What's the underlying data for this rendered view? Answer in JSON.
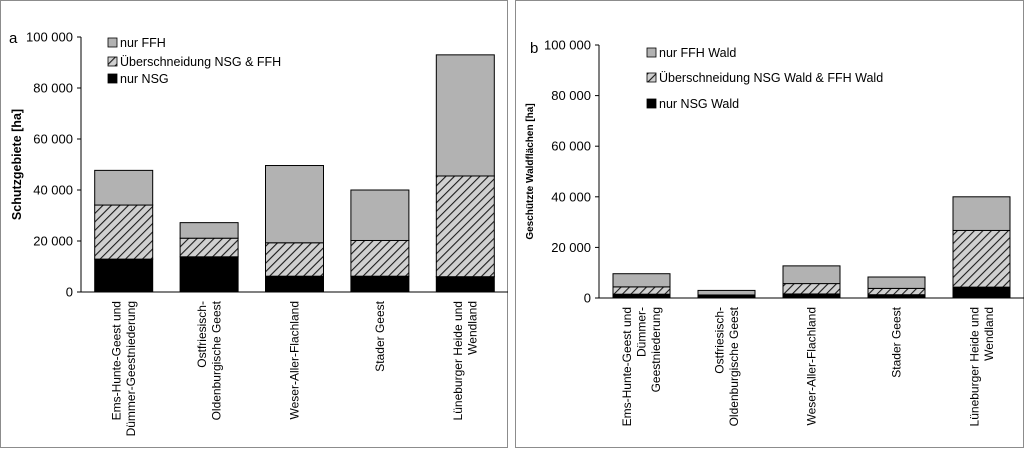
{
  "chart_data": [
    {
      "panel": "a",
      "type": "bar",
      "stacked": true,
      "ylabel": "Schutzgebiete  [ha]",
      "ylim": [
        0,
        100000
      ],
      "y_ticks": [
        {
          "value": 0,
          "label": "0"
        },
        {
          "value": 20000,
          "label": "20 000"
        },
        {
          "value": 40000,
          "label": "40 000"
        },
        {
          "value": 60000,
          "label": "60 000"
        },
        {
          "value": 80000,
          "label": "80 000"
        },
        {
          "value": 100000,
          "label": "100 000"
        }
      ],
      "categories": [
        [
          "Ems-Hunte-Geest und",
          "Dümmer-Geestniederung"
        ],
        [
          "Ostfriesisch-",
          "Oldenburgische Geest"
        ],
        [
          "Weser-Aller-Flachland"
        ],
        [
          "Stader Geest"
        ],
        [
          "Lüneburger Heide und",
          "Wendland"
        ]
      ],
      "series": [
        {
          "name": "nur NSG",
          "pattern": "solid-black",
          "values": [
            12900,
            13800,
            6200,
            6200,
            6000
          ]
        },
        {
          "name": "Überschneidung NSG  & FFH",
          "pattern": "hatched",
          "values": [
            21200,
            7300,
            13100,
            14000,
            39500
          ]
        },
        {
          "name": "nur FFH",
          "pattern": "solid-gray",
          "values": [
            13600,
            6100,
            30300,
            19800,
            47500
          ]
        }
      ],
      "legend": [
        "nur FFH",
        "Überschneidung NSG  & FFH",
        "nur NSG"
      ],
      "legend_position": "top-left",
      "grid": false
    },
    {
      "panel": "b",
      "type": "bar",
      "stacked": true,
      "ylabel": "Geschützte Waldflächen [ha]",
      "ylim": [
        0,
        100000
      ],
      "y_ticks": [
        {
          "value": 0,
          "label": "0"
        },
        {
          "value": 20000,
          "label": "20 000"
        },
        {
          "value": 40000,
          "label": "40 000"
        },
        {
          "value": 60000,
          "label": "60 000"
        },
        {
          "value": 80000,
          "label": "80 000"
        },
        {
          "value": 100000,
          "label": "100 000"
        }
      ],
      "categories": [
        [
          "Ems-Hunte-Geest und",
          "Dümmer-",
          "Geestniederung"
        ],
        [
          "Ostfriesisch-",
          "Oldenburgische Geest"
        ],
        [
          "Weser-Aller-Flachland"
        ],
        [
          "Stader Geest"
        ],
        [
          "Lüneburger Heide und",
          "Wendland"
        ]
      ],
      "series": [
        {
          "name": "nur NSG Wald",
          "pattern": "solid-black",
          "values": [
            1500,
            800,
            1600,
            1300,
            4300
          ]
        },
        {
          "name": "Überschneidung NSG Wald & FFH Wald",
          "pattern": "hatched",
          "values": [
            2900,
            400,
            4100,
            2500,
            22400
          ]
        },
        {
          "name": "nur FFH Wald",
          "pattern": "solid-gray",
          "values": [
            5200,
            1800,
            7000,
            4500,
            13300
          ]
        }
      ],
      "legend": [
        "nur FFH Wald",
        "Überschneidung NSG Wald & FFH Wald",
        "nur NSG Wald"
      ],
      "legend_position": "top-left",
      "grid": false
    }
  ],
  "panels": {
    "a": {
      "letter": "a"
    },
    "b": {
      "letter": "b"
    }
  },
  "colors": {
    "ffh": "#b2b2b2",
    "hatch_bg": "#d0d0d0",
    "hatch_line": "#1a1a1a",
    "nsg": "#000000",
    "axis": "#000000"
  }
}
